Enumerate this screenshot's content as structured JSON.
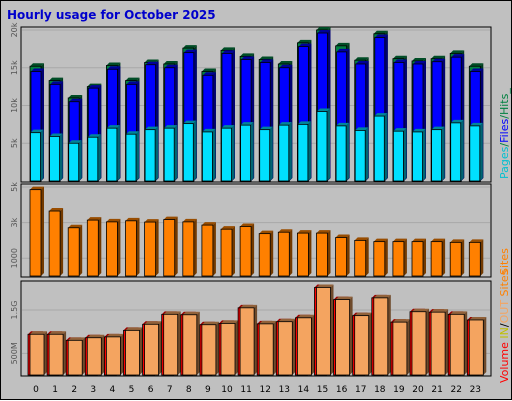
{
  "title": "Hourly usage for October 2025",
  "colors": {
    "background": "#c0c0c0",
    "hits": "#008040",
    "files": "#0000ff",
    "pages": "#00e0ff",
    "sites": "#ff8000",
    "volume_in": "#ff0000",
    "volume_out": "#f4a460"
  },
  "legend": {
    "top": [
      {
        "key": "pages",
        "text": "Pages",
        "color": "#00c0d0"
      },
      {
        "key": "sep1",
        "text": "/",
        "color": "#008040"
      },
      {
        "key": "files",
        "text": "Files",
        "color": "#0000ff"
      },
      {
        "key": "sep2",
        "text": "/",
        "color": "#008040"
      },
      {
        "key": "hits",
        "text": "Hits",
        "color": "#008040"
      },
      {
        "key": "tail",
        "text": "_",
        "color": "#008040"
      }
    ],
    "middle": [
      {
        "key": "sites",
        "text": "Sites",
        "color": "#ff8000"
      }
    ],
    "bottom": [
      {
        "key": "volume",
        "text": "Volume",
        "color": "#ff0000"
      },
      {
        "key": "sp1",
        "text": " ",
        "color": "#000000"
      },
      {
        "key": "in",
        "text": "IN",
        "color": "#c0c000"
      },
      {
        "key": "sep",
        "text": "/",
        "color": "#000000"
      },
      {
        "key": "out",
        "text": "OUT",
        "color": "#f4a460"
      },
      {
        "key": "sp2",
        "text": "  ",
        "color": "#000000"
      },
      {
        "key": "sites2",
        "text": "Sites",
        "color": "#ff8000"
      }
    ]
  },
  "chart_data": [
    {
      "type": "bar",
      "name": "hits-files-pages",
      "categories": [
        "0",
        "1",
        "2",
        "3",
        "4",
        "5",
        "6",
        "7",
        "8",
        "9",
        "10",
        "11",
        "12",
        "13",
        "14",
        "15",
        "16",
        "17",
        "18",
        "19",
        "20",
        "21",
        "22",
        "23"
      ],
      "series": [
        {
          "name": "Hits",
          "values": [
            15200,
            13300,
            11000,
            12500,
            15300,
            13300,
            15700,
            15500,
            17600,
            14500,
            17300,
            16500,
            16100,
            15500,
            18300,
            20000,
            17900,
            16000,
            19500,
            16200,
            15900,
            16200,
            16900,
            15200
          ]
        },
        {
          "name": "Files",
          "values": [
            14500,
            12800,
            10500,
            12300,
            14800,
            12800,
            15400,
            15000,
            17000,
            14000,
            16900,
            16100,
            15700,
            15000,
            17800,
            19600,
            17100,
            15500,
            19000,
            15700,
            15500,
            15800,
            16400,
            14500
          ]
        },
        {
          "name": "Pages",
          "values": [
            6400,
            5900,
            5000,
            5800,
            7000,
            6200,
            6800,
            7000,
            7600,
            6500,
            7000,
            7400,
            6800,
            7400,
            7500,
            9200,
            7300,
            6700,
            8600,
            6600,
            6500,
            6800,
            7700,
            7300
          ]
        }
      ],
      "yticks": [
        "5k",
        "10k",
        "15k",
        "20k"
      ],
      "ytick_values": [
        5000,
        10000,
        15000,
        20000
      ],
      "ylim": [
        0,
        20000
      ]
    },
    {
      "type": "bar",
      "name": "sites",
      "categories": [
        "0",
        "1",
        "2",
        "3",
        "4",
        "5",
        "6",
        "7",
        "8",
        "9",
        "10",
        "11",
        "12",
        "13",
        "14",
        "15",
        "16",
        "17",
        "18",
        "19",
        "20",
        "21",
        "22",
        "23"
      ],
      "series": [
        {
          "name": "Sites",
          "values": [
            4850,
            3650,
            2710,
            3140,
            3040,
            3100,
            3030,
            3170,
            3040,
            2860,
            2630,
            2780,
            2380,
            2460,
            2410,
            2410,
            2160,
            2000,
            1930,
            1930,
            1930,
            1930,
            1890,
            1890
          ]
        }
      ],
      "yticks": [
        "1000",
        "3k",
        "5k"
      ],
      "ytick_values": [
        1000,
        3000,
        5000
      ],
      "ylim": [
        0,
        5000
      ]
    },
    {
      "type": "bar",
      "name": "volume",
      "categories": [
        "0",
        "1",
        "2",
        "3",
        "4",
        "5",
        "6",
        "7",
        "8",
        "9",
        "10",
        "11",
        "12",
        "13",
        "14",
        "15",
        "16",
        "17",
        "18",
        "19",
        "20",
        "21",
        "22",
        "23"
      ],
      "series": [
        {
          "name": "Volume",
          "values": [
            0.94,
            0.94,
            0.8,
            0.86,
            0.88,
            1.03,
            1.17,
            1.4,
            1.39,
            1.16,
            1.19,
            1.55,
            1.18,
            1.23,
            1.32,
            2.02,
            1.74,
            1.37,
            1.78,
            1.22,
            1.46,
            1.45,
            1.4,
            1.27
          ]
        }
      ],
      "yticks": [
        "500M",
        "1.5G"
      ],
      "ytick_values": [
        0.5,
        1.5
      ],
      "ylim": [
        0,
        2.1
      ]
    }
  ]
}
